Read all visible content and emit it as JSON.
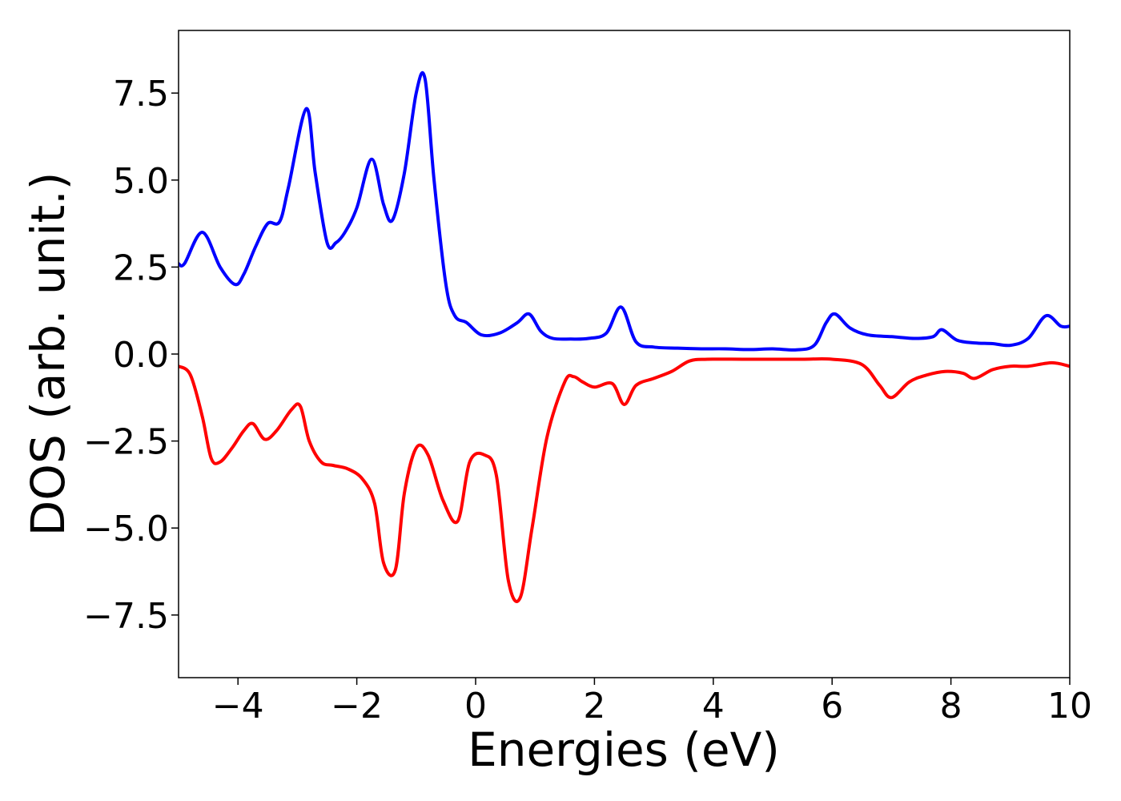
{
  "chart_data": {
    "type": "line",
    "xlabel": "Energies (eV)",
    "ylabel": "DOS (arb. unit.)",
    "xlim": [
      -5,
      10
    ],
    "ylim": [
      -9.3,
      9.3
    ],
    "xticks": [
      -4,
      -2,
      0,
      2,
      4,
      6,
      8,
      10
    ],
    "xtick_labels": [
      "−4",
      "−2",
      "0",
      "2",
      "4",
      "6",
      "8",
      "10"
    ],
    "yticks": [
      7.5,
      5.0,
      2.5,
      0.0,
      -2.5,
      -5.0,
      -7.5
    ],
    "ytick_labels": [
      "7.5",
      "5.0",
      "2.5",
      "0.0",
      "−2.5",
      "−5.0",
      "−7.5"
    ],
    "grid": false,
    "series": [
      {
        "color": "#0000ff",
        "x": [
          -5.0,
          -4.9,
          -4.6,
          -4.3,
          -4.05,
          -3.9,
          -3.7,
          -3.5,
          -3.3,
          -3.15,
          -2.85,
          -2.7,
          -2.5,
          -2.35,
          -2.2,
          -2.0,
          -1.75,
          -1.55,
          -1.4,
          -1.2,
          -1.0,
          -0.85,
          -0.7,
          -0.5,
          -0.35,
          -0.15,
          0.1,
          0.4,
          0.7,
          0.9,
          1.1,
          1.3,
          1.6,
          1.9,
          2.2,
          2.45,
          2.7,
          3.0,
          3.4,
          3.8,
          4.2,
          4.6,
          5.0,
          5.4,
          5.7,
          5.9,
          6.05,
          6.3,
          6.6,
          7.0,
          7.4,
          7.7,
          7.85,
          8.1,
          8.4,
          8.7,
          9.0,
          9.3,
          9.6,
          9.85,
          10.0
        ],
        "y": [
          2.6,
          2.6,
          3.5,
          2.5,
          2.0,
          2.3,
          3.1,
          3.75,
          3.8,
          4.8,
          7.05,
          5.2,
          3.2,
          3.2,
          3.5,
          4.2,
          5.6,
          4.3,
          3.85,
          5.2,
          7.5,
          7.9,
          5.0,
          2.0,
          1.1,
          0.9,
          0.55,
          0.6,
          0.9,
          1.15,
          0.65,
          0.45,
          0.43,
          0.45,
          0.6,
          1.35,
          0.35,
          0.2,
          0.17,
          0.15,
          0.15,
          0.13,
          0.15,
          0.12,
          0.25,
          0.9,
          1.15,
          0.75,
          0.55,
          0.5,
          0.45,
          0.5,
          0.7,
          0.4,
          0.32,
          0.3,
          0.25,
          0.45,
          1.1,
          0.8,
          0.8
        ]
      },
      {
        "color": "#ff0000",
        "x": [
          -5.0,
          -4.8,
          -4.6,
          -4.45,
          -4.3,
          -4.1,
          -3.9,
          -3.75,
          -3.55,
          -3.35,
          -3.1,
          -2.95,
          -2.8,
          -2.6,
          -2.4,
          -2.15,
          -1.9,
          -1.7,
          -1.55,
          -1.35,
          -1.2,
          -1.0,
          -0.8,
          -0.55,
          -0.3,
          -0.1,
          0.15,
          0.35,
          0.55,
          0.75,
          0.95,
          1.2,
          1.5,
          1.65,
          1.8,
          2.0,
          2.3,
          2.5,
          2.7,
          3.0,
          3.3,
          3.6,
          3.9,
          4.5,
          5.0,
          5.5,
          6.0,
          6.5,
          6.8,
          7.0,
          7.3,
          7.6,
          7.9,
          8.2,
          8.4,
          8.7,
          9.0,
          9.3,
          9.7,
          10.0
        ],
        "y": [
          -0.35,
          -0.6,
          -1.8,
          -3.0,
          -3.1,
          -2.7,
          -2.2,
          -2.0,
          -2.45,
          -2.2,
          -1.6,
          -1.5,
          -2.5,
          -3.1,
          -3.2,
          -3.3,
          -3.6,
          -4.3,
          -6.0,
          -6.2,
          -4.0,
          -2.7,
          -2.9,
          -4.2,
          -4.8,
          -3.1,
          -2.9,
          -3.5,
          -6.5,
          -7.0,
          -5.0,
          -2.4,
          -0.8,
          -0.65,
          -0.8,
          -0.95,
          -0.85,
          -1.45,
          -0.9,
          -0.7,
          -0.5,
          -0.2,
          -0.15,
          -0.15,
          -0.15,
          -0.15,
          -0.15,
          -0.3,
          -0.9,
          -1.25,
          -0.8,
          -0.6,
          -0.5,
          -0.55,
          -0.7,
          -0.45,
          -0.35,
          -0.35,
          -0.25,
          -0.35
        ]
      }
    ]
  }
}
